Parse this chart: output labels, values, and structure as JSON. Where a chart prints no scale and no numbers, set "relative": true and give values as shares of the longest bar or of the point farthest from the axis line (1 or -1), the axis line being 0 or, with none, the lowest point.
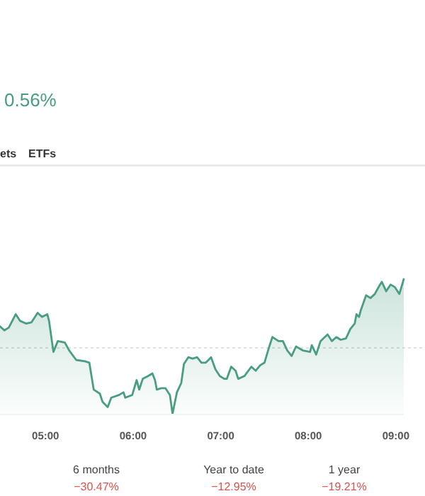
{
  "chart_data": {
    "type": "area",
    "title": "0.56%",
    "relative": true,
    "grid": false,
    "annotations": [
      "ets",
      "ETFs",
      "6 months",
      "−30.47%",
      "Year to date",
      "−12.95%",
      "1 year",
      "−19.21%"
    ],
    "xlim": [
      4.48,
      9.09
    ],
    "xticks": [
      {
        "value": 5,
        "label": "05:00"
      },
      {
        "value": 6,
        "label": "06:00"
      },
      {
        "value": 7,
        "label": "07:00"
      },
      {
        "value": 8,
        "label": "08:00"
      },
      {
        "value": 9,
        "label": "09:00"
      }
    ],
    "tick_labels": "x",
    "ref_lines": [
      {
        "axis": "y",
        "value": 0.49,
        "color": "#e0e0e0",
        "line_style": "dotted"
      }
    ],
    "series": [
      {
        "color": "#4a9e80",
        "x": [
          4.48,
          4.53,
          4.58,
          4.66,
          4.71,
          4.78,
          4.84,
          4.91,
          4.96,
          5.02,
          5.04,
          5.09,
          5.14,
          5.22,
          5.27,
          5.35,
          5.45,
          5.5,
          5.55,
          5.62,
          5.65,
          5.71,
          5.75,
          5.84,
          5.89,
          5.91,
          5.99,
          6.04,
          6.07,
          6.11,
          6.17,
          6.22,
          6.25,
          6.27,
          6.32,
          6.37,
          6.42,
          6.45,
          6.5,
          6.55,
          6.58,
          6.63,
          6.68,
          6.73,
          6.78,
          6.83,
          6.89,
          6.94,
          6.99,
          7.04,
          7.07,
          7.12,
          7.17,
          7.2,
          7.27,
          7.35,
          7.4,
          7.45,
          7.5,
          7.55,
          7.59,
          7.66,
          7.71,
          7.76,
          7.81,
          7.86,
          7.94,
          8.02,
          8.04,
          8.09,
          8.14,
          8.22,
          8.27,
          8.32,
          8.37,
          8.43,
          8.48,
          8.53,
          8.55,
          8.58,
          8.6,
          8.66,
          8.71,
          8.76,
          8.81,
          8.84,
          8.89,
          8.94,
          8.99,
          9.04,
          9.09
        ],
        "values": [
          0.65,
          0.62,
          0.64,
          0.74,
          0.69,
          0.67,
          0.68,
          0.75,
          0.72,
          0.74,
          0.69,
          0.46,
          0.54,
          0.53,
          0.47,
          0.4,
          0.39,
          0.38,
          0.18,
          0.15,
          0.09,
          0.05,
          0.12,
          0.14,
          0.16,
          0.12,
          0.14,
          0.25,
          0.18,
          0.26,
          0.28,
          0.3,
          0.25,
          0.18,
          0.19,
          0.19,
          0.14,
          0,
          0.16,
          0.23,
          0.37,
          0.42,
          0.41,
          0.42,
          0.38,
          0.38,
          0.42,
          0.33,
          0.28,
          0.26,
          0.26,
          0.35,
          0.32,
          0.26,
          0.28,
          0.35,
          0.32,
          0.36,
          0.38,
          0.49,
          0.57,
          0.54,
          0.54,
          0.47,
          0.43,
          0.5,
          0.47,
          0.46,
          0.51,
          0.44,
          0.54,
          0.59,
          0.54,
          0.57,
          0.55,
          0.56,
          0.63,
          0.67,
          0.74,
          0.72,
          0.77,
          0.88,
          0.86,
          0.89,
          0.95,
          0.98,
          0.91,
          0.96,
          0.94,
          0.89,
          1
        ]
      }
    ]
  }
}
